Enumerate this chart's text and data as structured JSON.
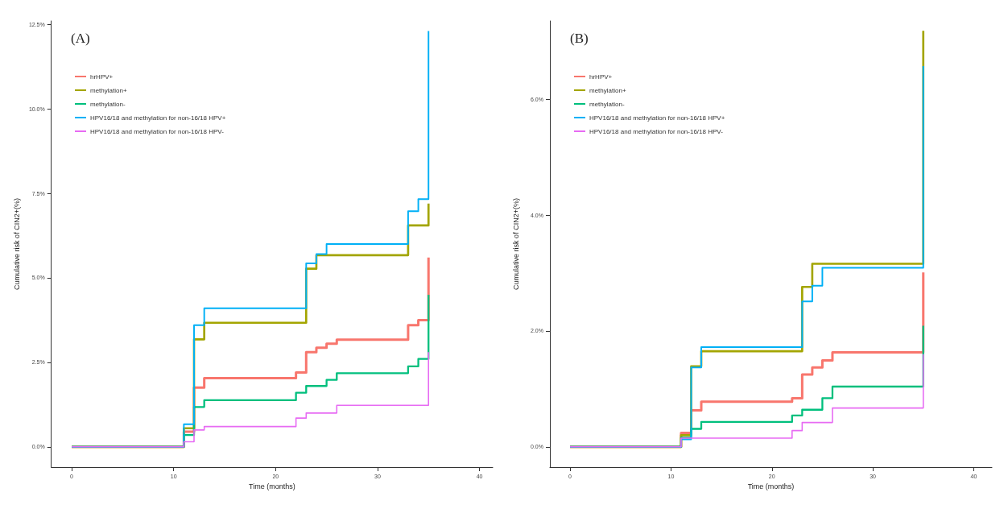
{
  "chart_data": [
    {
      "type": "step",
      "title": "(A)",
      "xlabel": "Time (months)",
      "ylabel": "Cumulative risk of CIN2+(%)",
      "legend": "top left",
      "grid": false,
      "xlim": [
        -2,
        41.3
      ],
      "xticks": [
        0,
        10,
        20,
        30,
        40
      ],
      "ylim": [
        -0.6,
        12.6
      ],
      "yticks": [
        {
          "value": 0,
          "label": "0.0%"
        },
        {
          "value": 2.5,
          "label": "2.5%"
        },
        {
          "value": 5,
          "label": "5.0%"
        },
        {
          "value": 7.5,
          "label": "7.5%"
        },
        {
          "value": 10,
          "label": "10.0%"
        },
        {
          "value": 12.5,
          "label": "12.5%"
        }
      ],
      "series": [
        {
          "name": "hrHPV+",
          "color": "#f8766d",
          "x": [
            0,
            11,
            12,
            13,
            22,
            23,
            24,
            25,
            26,
            33,
            34,
            35
          ],
          "values": [
            0,
            0.45,
            1.75,
            2.03,
            2.2,
            2.8,
            2.93,
            3.05,
            3.17,
            3.6,
            3.75,
            5.6
          ]
        },
        {
          "name": "methylation+",
          "color": "#a3a500",
          "x": [
            0,
            11,
            12,
            13,
            23,
            24,
            33,
            35
          ],
          "values": [
            0,
            0.55,
            3.18,
            3.67,
            5.27,
            5.67,
            6.55,
            7.2
          ]
        },
        {
          "name": "methylation-",
          "color": "#00bf7d",
          "x": [
            0,
            11,
            12,
            13,
            22,
            23,
            25,
            26,
            33,
            34,
            35
          ],
          "values": [
            0,
            0.35,
            1.18,
            1.38,
            1.6,
            1.8,
            1.98,
            2.18,
            2.38,
            2.6,
            4.5
          ]
        },
        {
          "name": "HPV16/18 and methylation for non-16/18 HPV+",
          "color": "#00b0f6",
          "x": [
            0,
            11,
            12,
            13,
            23,
            24,
            25,
            33,
            34,
            35
          ],
          "values": [
            0,
            0.67,
            3.6,
            4.1,
            5.43,
            5.7,
            6,
            6.97,
            7.33,
            12.3
          ]
        },
        {
          "name": "HPV16/18 and methylation for non-16/18 HPV-",
          "color": "#e76bf3",
          "x": [
            0,
            11,
            12,
            13,
            22,
            23,
            26,
            35
          ],
          "values": [
            0,
            0.15,
            0.5,
            0.6,
            0.85,
            1,
            1.23,
            2.8
          ]
        }
      ]
    },
    {
      "type": "step",
      "title": "(B)",
      "xlabel": "Time (months)",
      "ylabel": "Cumulative risk of CIN2+(%)",
      "legend": "top left",
      "grid": false,
      "xlim": [
        -2,
        41.8
      ],
      "xticks": [
        0,
        10,
        20,
        30,
        40
      ],
      "ylim": [
        -0.35,
        7.35
      ],
      "yticks": [
        {
          "value": 0,
          "label": "0.0%"
        },
        {
          "value": 2,
          "label": "2.0%"
        },
        {
          "value": 4,
          "label": "4.0%"
        },
        {
          "value": 6,
          "label": "6.0%"
        }
      ],
      "series": [
        {
          "name": "hrHPV+",
          "color": "#f8766d",
          "x": [
            0,
            11,
            12,
            13,
            22,
            23,
            24,
            25,
            26,
            35
          ],
          "values": [
            0,
            0.24,
            0.63,
            0.78,
            0.84,
            1.25,
            1.37,
            1.49,
            1.63,
            3.01
          ]
        },
        {
          "name": "methylation+",
          "color": "#a3a500",
          "x": [
            0,
            11,
            12,
            13,
            23,
            24,
            35
          ],
          "values": [
            0,
            0.2,
            1.39,
            1.65,
            2.76,
            3.16,
            7.18
          ]
        },
        {
          "name": "methylation-",
          "color": "#00bf7d",
          "x": [
            0,
            11,
            12,
            13,
            22,
            23,
            25,
            26,
            35
          ],
          "values": [
            0,
            0.16,
            0.31,
            0.43,
            0.54,
            0.64,
            0.84,
            1.04,
            2.09
          ]
        },
        {
          "name": "HPV16/18 and methylation for non-16/18 HPV+",
          "color": "#00b0f6",
          "x": [
            0,
            11,
            12,
            13,
            23,
            24,
            25,
            35
          ],
          "values": [
            0,
            0.13,
            1.37,
            1.72,
            2.51,
            2.78,
            3.09,
            6.57
          ]
        },
        {
          "name": "HPV16/18 and methylation for non-16/18 HPV-",
          "color": "#e76bf3",
          "x": [
            0,
            11,
            22,
            23,
            26,
            35
          ],
          "values": [
            0,
            0.15,
            0.28,
            0.42,
            0.67,
            1.6
          ]
        }
      ]
    }
  ]
}
